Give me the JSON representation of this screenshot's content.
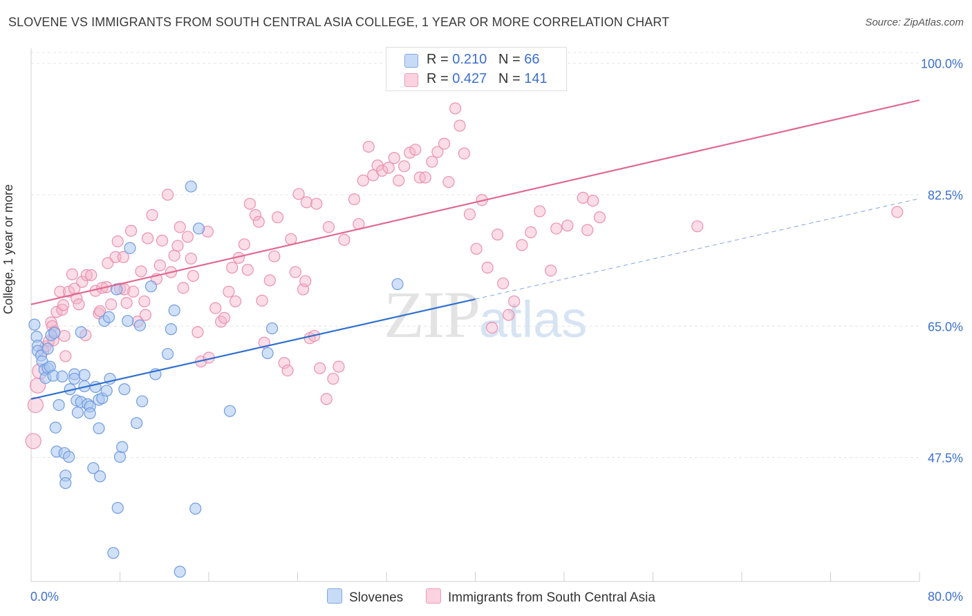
{
  "header": {
    "title": "SLOVENE VS IMMIGRANTS FROM SOUTH CENTRAL ASIA COLLEGE, 1 YEAR OR MORE CORRELATION CHART",
    "source": "Source: ZipAtlas.com"
  },
  "watermark": {
    "zip": "ZIP",
    "atlas": "atlas"
  },
  "legend": {
    "r_label": "R =",
    "n_label": "N =",
    "series": [
      {
        "name": "Slovenes",
        "r": "0.210",
        "n": "66",
        "color": "#a9c6f0",
        "line": "#2e6fcf"
      },
      {
        "name": "Immigrants from South Central Asia",
        "r": "0.427",
        "n": "141",
        "color": "#f5b3c8",
        "line": "#e0698f"
      }
    ]
  },
  "chart_data": {
    "type": "scatter",
    "title": "SLOVENE VS IMMIGRANTS FROM SOUTH CENTRAL ASIA COLLEGE, 1 YEAR OR MORE CORRELATION CHART",
    "xlabel": "",
    "ylabel": "College, 1 year or more",
    "xlim": [
      0,
      80
    ],
    "ylim": [
      31,
      102
    ],
    "x_tick_labels": [
      "0.0%",
      "80.0%"
    ],
    "y_ticks": [
      47.5,
      65.0,
      82.5,
      100.0
    ],
    "y_tick_labels": [
      "47.5%",
      "65.0%",
      "82.5%",
      "100.0%"
    ],
    "grid": true,
    "series": [
      {
        "name": "Slovenes",
        "trend": {
          "x0": 0,
          "y0": 55.3,
          "x1": 40,
          "y1": 68.6,
          "dash_to_x": 80,
          "dash_to_y": 82.0
        },
        "points": [
          [
            0.3,
            65.2
          ],
          [
            0.5,
            63.6
          ],
          [
            0.6,
            62.4
          ],
          [
            0.6,
            61.7
          ],
          [
            0.9,
            61.1
          ],
          [
            1.0,
            60.3
          ],
          [
            1.2,
            59.2
          ],
          [
            1.3,
            58.1
          ],
          [
            1.5,
            62.0
          ],
          [
            1.5,
            59.4
          ],
          [
            1.7,
            59.6
          ],
          [
            1.8,
            63.8
          ],
          [
            2.0,
            58.4
          ],
          [
            2.1,
            64.1
          ],
          [
            2.2,
            51.5
          ],
          [
            2.3,
            48.3
          ],
          [
            2.5,
            54.5
          ],
          [
            2.8,
            58.3
          ],
          [
            3.0,
            48.1
          ],
          [
            3.1,
            45.1
          ],
          [
            3.1,
            44.1
          ],
          [
            3.4,
            47.6
          ],
          [
            3.5,
            56.6
          ],
          [
            3.9,
            58.6
          ],
          [
            3.9,
            58.0
          ],
          [
            4.1,
            55.1
          ],
          [
            4.2,
            53.5
          ],
          [
            4.5,
            54.9
          ],
          [
            4.5,
            64.2
          ],
          [
            4.8,
            58.5
          ],
          [
            4.8,
            57.0
          ],
          [
            5.1,
            54.6
          ],
          [
            5.3,
            54.3
          ],
          [
            5.3,
            53.4
          ],
          [
            5.6,
            46.1
          ],
          [
            5.8,
            56.9
          ],
          [
            6.1,
            55.2
          ],
          [
            6.1,
            51.4
          ],
          [
            6.2,
            45.0
          ],
          [
            6.4,
            55.4
          ],
          [
            6.6,
            65.7
          ],
          [
            6.8,
            56.4
          ],
          [
            7.0,
            66.2
          ],
          [
            7.1,
            58.0
          ],
          [
            7.4,
            34.8
          ],
          [
            7.7,
            69.9
          ],
          [
            7.8,
            40.8
          ],
          [
            8.0,
            47.6
          ],
          [
            8.2,
            48.9
          ],
          [
            8.4,
            56.6
          ],
          [
            8.7,
            65.7
          ],
          [
            8.9,
            75.4
          ],
          [
            9.5,
            52.1
          ],
          [
            9.8,
            65.1
          ],
          [
            10.0,
            55.0
          ],
          [
            10.8,
            70.3
          ],
          [
            11.2,
            58.6
          ],
          [
            12.3,
            61.3
          ],
          [
            12.6,
            64.6
          ],
          [
            12.9,
            67.1
          ],
          [
            13.4,
            32.3
          ],
          [
            14.4,
            83.6
          ],
          [
            14.8,
            40.7
          ],
          [
            15.1,
            78.0
          ],
          [
            17.9,
            53.7
          ],
          [
            21.3,
            61.4
          ],
          [
            21.7,
            64.7
          ],
          [
            33.0,
            70.6
          ]
        ]
      },
      {
        "name": "Immigrants from South Central Asia",
        "trend": {
          "x0": 0,
          "y0": 67.9,
          "x1": 80,
          "y1": 95.1
        },
        "points": [
          [
            0.2,
            49.7
          ],
          [
            0.4,
            54.5
          ],
          [
            0.6,
            57.1
          ],
          [
            0.8,
            59.0
          ],
          [
            1.1,
            61.7
          ],
          [
            1.3,
            62.3
          ],
          [
            1.6,
            63.0
          ],
          [
            1.8,
            65.5
          ],
          [
            1.9,
            65.0
          ],
          [
            2.0,
            63.1
          ],
          [
            2.1,
            64.3
          ],
          [
            2.3,
            66.9
          ],
          [
            2.6,
            69.6
          ],
          [
            2.8,
            67.2
          ],
          [
            2.9,
            67.8
          ],
          [
            3.0,
            63.7
          ],
          [
            3.1,
            61.0
          ],
          [
            3.4,
            69.6
          ],
          [
            3.7,
            71.9
          ],
          [
            3.9,
            70.0
          ],
          [
            4.1,
            68.7
          ],
          [
            4.3,
            67.9
          ],
          [
            4.6,
            70.9
          ],
          [
            4.9,
            63.8
          ],
          [
            5.0,
            71.8
          ],
          [
            5.4,
            71.8
          ],
          [
            5.8,
            69.7
          ],
          [
            6.1,
            66.7
          ],
          [
            6.2,
            67.0
          ],
          [
            6.4,
            70.1
          ],
          [
            6.8,
            70.2
          ],
          [
            6.9,
            73.4
          ],
          [
            7.2,
            67.9
          ],
          [
            7.6,
            74.2
          ],
          [
            7.8,
            76.3
          ],
          [
            8.0,
            70.0
          ],
          [
            8.3,
            74.2
          ],
          [
            8.4,
            69.9
          ],
          [
            8.6,
            68.1
          ],
          [
            9.0,
            77.7
          ],
          [
            9.2,
            69.6
          ],
          [
            9.6,
            65.6
          ],
          [
            9.9,
            72.3
          ],
          [
            10.2,
            68.3
          ],
          [
            10.3,
            66.5
          ],
          [
            10.5,
            76.7
          ],
          [
            10.9,
            79.8
          ],
          [
            11.3,
            71.3
          ],
          [
            11.6,
            73.1
          ],
          [
            11.8,
            76.4
          ],
          [
            12.3,
            82.5
          ],
          [
            12.6,
            72.2
          ],
          [
            12.9,
            74.4
          ],
          [
            13.2,
            75.7
          ],
          [
            13.4,
            78.2
          ],
          [
            13.7,
            70.1
          ],
          [
            14.1,
            76.9
          ],
          [
            14.4,
            74.0
          ],
          [
            14.6,
            71.7
          ],
          [
            15.0,
            64.2
          ],
          [
            15.3,
            60.3
          ],
          [
            15.9,
            77.6
          ],
          [
            16.0,
            60.8
          ],
          [
            16.6,
            67.4
          ],
          [
            17.1,
            65.6
          ],
          [
            17.4,
            66.1
          ],
          [
            17.8,
            69.6
          ],
          [
            18.1,
            72.8
          ],
          [
            18.4,
            68.3
          ],
          [
            18.7,
            74.1
          ],
          [
            19.2,
            75.9
          ],
          [
            19.5,
            72.5
          ],
          [
            19.7,
            81.3
          ],
          [
            20.2,
            79.8
          ],
          [
            20.5,
            78.9
          ],
          [
            20.8,
            68.4
          ],
          [
            21.0,
            62.8
          ],
          [
            21.5,
            71.1
          ],
          [
            21.9,
            74.3
          ],
          [
            22.2,
            79.5
          ],
          [
            22.8,
            60.1
          ],
          [
            23.1,
            59.1
          ],
          [
            23.4,
            76.6
          ],
          [
            23.8,
            72.2
          ],
          [
            24.1,
            82.6
          ],
          [
            24.5,
            69.9
          ],
          [
            24.7,
            71.0
          ],
          [
            24.8,
            81.5
          ],
          [
            25.1,
            63.4
          ],
          [
            25.5,
            63.7
          ],
          [
            25.7,
            81.3
          ],
          [
            26.0,
            59.4
          ],
          [
            26.6,
            55.3
          ],
          [
            26.8,
            78.2
          ],
          [
            27.2,
            58.0
          ],
          [
            27.7,
            59.6
          ],
          [
            28.2,
            76.5
          ],
          [
            29.1,
            81.9
          ],
          [
            29.5,
            78.6
          ],
          [
            29.9,
            84.4
          ],
          [
            30.4,
            88.9
          ],
          [
            30.8,
            85.1
          ],
          [
            31.2,
            86.4
          ],
          [
            31.6,
            85.7
          ],
          [
            32.2,
            86.1
          ],
          [
            32.7,
            87.4
          ],
          [
            33.1,
            84.4
          ],
          [
            33.6,
            86.3
          ],
          [
            34.1,
            88.1
          ],
          [
            34.6,
            88.5
          ],
          [
            35.0,
            84.8
          ],
          [
            35.5,
            84.8
          ],
          [
            36.1,
            86.9
          ],
          [
            36.6,
            88.2
          ],
          [
            37.2,
            89.3
          ],
          [
            37.6,
            84.2
          ],
          [
            38.2,
            94.0
          ],
          [
            38.6,
            91.7
          ],
          [
            39.0,
            88.0
          ],
          [
            39.5,
            79.9
          ],
          [
            40.1,
            75.3
          ],
          [
            40.6,
            81.8
          ],
          [
            41.1,
            72.8
          ],
          [
            41.5,
            64.8
          ],
          [
            42.0,
            77.2
          ],
          [
            42.5,
            70.7
          ],
          [
            43.0,
            66.5
          ],
          [
            43.5,
            68.3
          ],
          [
            44.2,
            75.8
          ],
          [
            45.0,
            77.5
          ],
          [
            45.8,
            80.3
          ],
          [
            46.8,
            72.4
          ],
          [
            47.3,
            78.0
          ],
          [
            48.3,
            78.4
          ],
          [
            49.7,
            82.1
          ],
          [
            50.1,
            77.8
          ],
          [
            50.6,
            81.7
          ],
          [
            51.2,
            79.5
          ],
          [
            60.0,
            78.3
          ],
          [
            78.0,
            80.2
          ]
        ]
      }
    ]
  }
}
